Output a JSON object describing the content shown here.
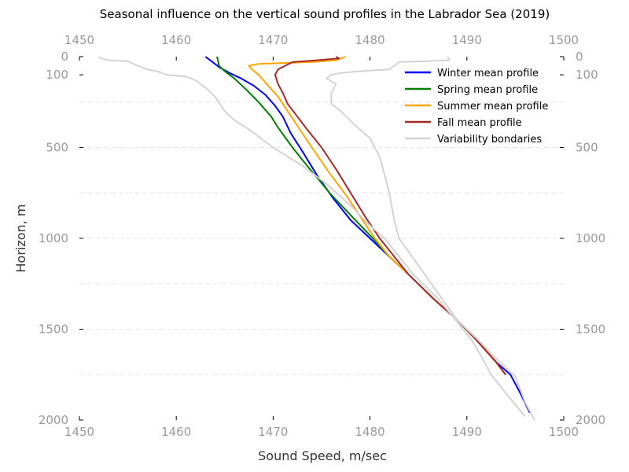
{
  "chart_data": {
    "type": "line",
    "title": "Seasonal influence on the vertical sound profiles in the Labrador Sea (2019)",
    "xlabel": "Sound Speed, m/sec",
    "ylabel": "Horizon, m",
    "xlim": [
      1450,
      1500
    ],
    "ylim": [
      2000,
      0
    ],
    "y_inverted": true,
    "x_ticks": [
      1450,
      1460,
      1470,
      1480,
      1490,
      1500
    ],
    "y_ticks": [
      0,
      100,
      500,
      1000,
      1500,
      2000
    ],
    "x_tick_labels": [
      "1450",
      "1460",
      "1470",
      "1480",
      "1490",
      "1500"
    ],
    "y_tick_labels": [
      "0",
      "100",
      "500",
      "1000",
      "1500",
      "2000"
    ],
    "grid": "horizontal dashed",
    "legend_position": "top-right",
    "series": [
      {
        "name": "Winter mean profile",
        "color": "#0000ff",
        "points": [
          [
            1463.0,
            0
          ],
          [
            1463.5,
            20
          ],
          [
            1464.5,
            60
          ],
          [
            1465.5,
            90
          ],
          [
            1466.7,
            120
          ],
          [
            1468.0,
            160
          ],
          [
            1469.2,
            210
          ],
          [
            1470.2,
            270
          ],
          [
            1471.0,
            330
          ],
          [
            1471.8,
            420
          ],
          [
            1473.0,
            520
          ],
          [
            1474.5,
            650
          ],
          [
            1476.2,
            780
          ],
          [
            1478.0,
            900
          ],
          [
            1480.0,
            1000
          ],
          [
            1482.0,
            1100
          ],
          [
            1484.0,
            1200
          ],
          [
            1486.5,
            1330
          ],
          [
            1489.0,
            1450
          ],
          [
            1491.0,
            1560
          ],
          [
            1493.0,
            1680
          ],
          [
            1494.5,
            1750
          ],
          [
            1495.5,
            1850
          ],
          [
            1496.5,
            1960
          ]
        ]
      },
      {
        "name": "Spring mean profile",
        "color": "#008000",
        "points": [
          [
            1464.2,
            0
          ],
          [
            1464.3,
            20
          ],
          [
            1464.4,
            50
          ],
          [
            1465.0,
            80
          ],
          [
            1466.0,
            120
          ],
          [
            1467.2,
            180
          ],
          [
            1468.5,
            250
          ],
          [
            1469.8,
            330
          ],
          [
            1470.5,
            390
          ],
          [
            1472.0,
            500
          ],
          [
            1473.5,
            600
          ],
          [
            1476.0,
            760
          ],
          [
            1478.5,
            900
          ],
          [
            1480.3,
            1000
          ],
          [
            1482.0,
            1100
          ],
          [
            1484.0,
            1200
          ],
          [
            1486.5,
            1330
          ],
          [
            1489.0,
            1450
          ],
          [
            1491.0,
            1560
          ],
          [
            1493.0,
            1680
          ],
          [
            1494.0,
            1750
          ]
        ]
      },
      {
        "name": "Summer mean profile",
        "color": "#ffa500",
        "points": [
          [
            1477.5,
            0
          ],
          [
            1476.5,
            20
          ],
          [
            1474.0,
            30
          ],
          [
            1471.0,
            35
          ],
          [
            1468.5,
            40
          ],
          [
            1467.5,
            50
          ],
          [
            1467.8,
            70
          ],
          [
            1468.5,
            100
          ],
          [
            1469.5,
            160
          ],
          [
            1470.5,
            220
          ],
          [
            1471.5,
            300
          ],
          [
            1472.5,
            380
          ],
          [
            1474.0,
            500
          ],
          [
            1475.8,
            640
          ],
          [
            1477.5,
            760
          ],
          [
            1479.0,
            880
          ],
          [
            1480.5,
            1000
          ],
          [
            1482.0,
            1100
          ],
          [
            1484.0,
            1200
          ],
          [
            1486.5,
            1330
          ],
          [
            1489.0,
            1450
          ],
          [
            1491.0,
            1560
          ],
          [
            1493.0,
            1680
          ],
          [
            1494.0,
            1750
          ]
        ]
      },
      {
        "name": "Fall mean profile",
        "color": "#a52a2a",
        "points": [
          [
            1476.5,
            0
          ],
          [
            1476.8,
            10
          ],
          [
            1474.5,
            20
          ],
          [
            1472.0,
            30
          ],
          [
            1470.5,
            70
          ],
          [
            1470.2,
            100
          ],
          [
            1470.5,
            150
          ],
          [
            1471.0,
            200
          ],
          [
            1471.5,
            260
          ],
          [
            1472.5,
            330
          ],
          [
            1473.5,
            400
          ],
          [
            1475.0,
            500
          ],
          [
            1476.5,
            620
          ],
          [
            1478.0,
            750
          ],
          [
            1479.5,
            880
          ],
          [
            1481.0,
            1000
          ],
          [
            1482.5,
            1100
          ],
          [
            1484.0,
            1200
          ],
          [
            1486.5,
            1330
          ],
          [
            1489.0,
            1450
          ],
          [
            1491.0,
            1560
          ],
          [
            1493.0,
            1680
          ],
          [
            1494.0,
            1750
          ]
        ]
      },
      {
        "name": "Variability bondaries",
        "color": "#d3d3d3",
        "points": [
          [
            1452.0,
            0
          ],
          [
            1452.3,
            10
          ],
          [
            1453.0,
            20
          ],
          [
            1455.0,
            25
          ],
          [
            1456.0,
            50
          ],
          [
            1457.0,
            70
          ],
          [
            1458.0,
            80
          ],
          [
            1459.0,
            100
          ],
          [
            1461.0,
            110
          ],
          [
            1462.0,
            130
          ],
          [
            1463.0,
            170
          ],
          [
            1464.0,
            220
          ],
          [
            1465.0,
            300
          ],
          [
            1466.0,
            350
          ],
          [
            1467.5,
            400
          ],
          [
            1470.0,
            500
          ],
          [
            1473.0,
            600
          ],
          [
            1475.5,
            700
          ],
          [
            1478.0,
            820
          ],
          [
            1480.0,
            930
          ],
          [
            1481.5,
            1000
          ],
          [
            1483.0,
            1100
          ],
          [
            1484.5,
            1200
          ],
          [
            1487.0,
            1330
          ],
          [
            1489.0,
            1460
          ],
          [
            1490.5,
            1560
          ],
          [
            1491.5,
            1650
          ],
          [
            1492.5,
            1750
          ],
          [
            1494.0,
            1850
          ],
          [
            1496.0,
            1980
          ]
        ]
      },
      {
        "name": "Variability bondaries",
        "color": "#d3d3d3",
        "points": [
          [
            1488.0,
            0
          ],
          [
            1488.2,
            20
          ],
          [
            1486.0,
            25
          ],
          [
            1483.0,
            30
          ],
          [
            1482.0,
            70
          ],
          [
            1479.0,
            80
          ],
          [
            1477.0,
            90
          ],
          [
            1476.0,
            100
          ],
          [
            1475.5,
            120
          ],
          [
            1476.5,
            150
          ],
          [
            1476.0,
            200
          ],
          [
            1476.0,
            260
          ],
          [
            1477.0,
            300
          ],
          [
            1478.5,
            380
          ],
          [
            1480.0,
            450
          ],
          [
            1481.0,
            550
          ],
          [
            1481.5,
            650
          ],
          [
            1482.0,
            750
          ],
          [
            1482.5,
            900
          ],
          [
            1483.0,
            1000
          ],
          [
            1485.0,
            1150
          ],
          [
            1487.0,
            1300
          ],
          [
            1489.0,
            1450
          ],
          [
            1491.0,
            1550
          ],
          [
            1493.0,
            1660
          ],
          [
            1495.0,
            1760
          ],
          [
            1496.0,
            1900
          ],
          [
            1497.0,
            2000
          ]
        ]
      }
    ],
    "legend_entries": [
      {
        "name": "Winter mean profile",
        "color": "#0000ff"
      },
      {
        "name": "Spring mean profile",
        "color": "#008000"
      },
      {
        "name": "Summer mean profile",
        "color": "#ffa500"
      },
      {
        "name": "Fall mean profile",
        "color": "#a52a2a"
      },
      {
        "name": "Variability bondaries",
        "color": "#d3d3d3"
      }
    ]
  }
}
